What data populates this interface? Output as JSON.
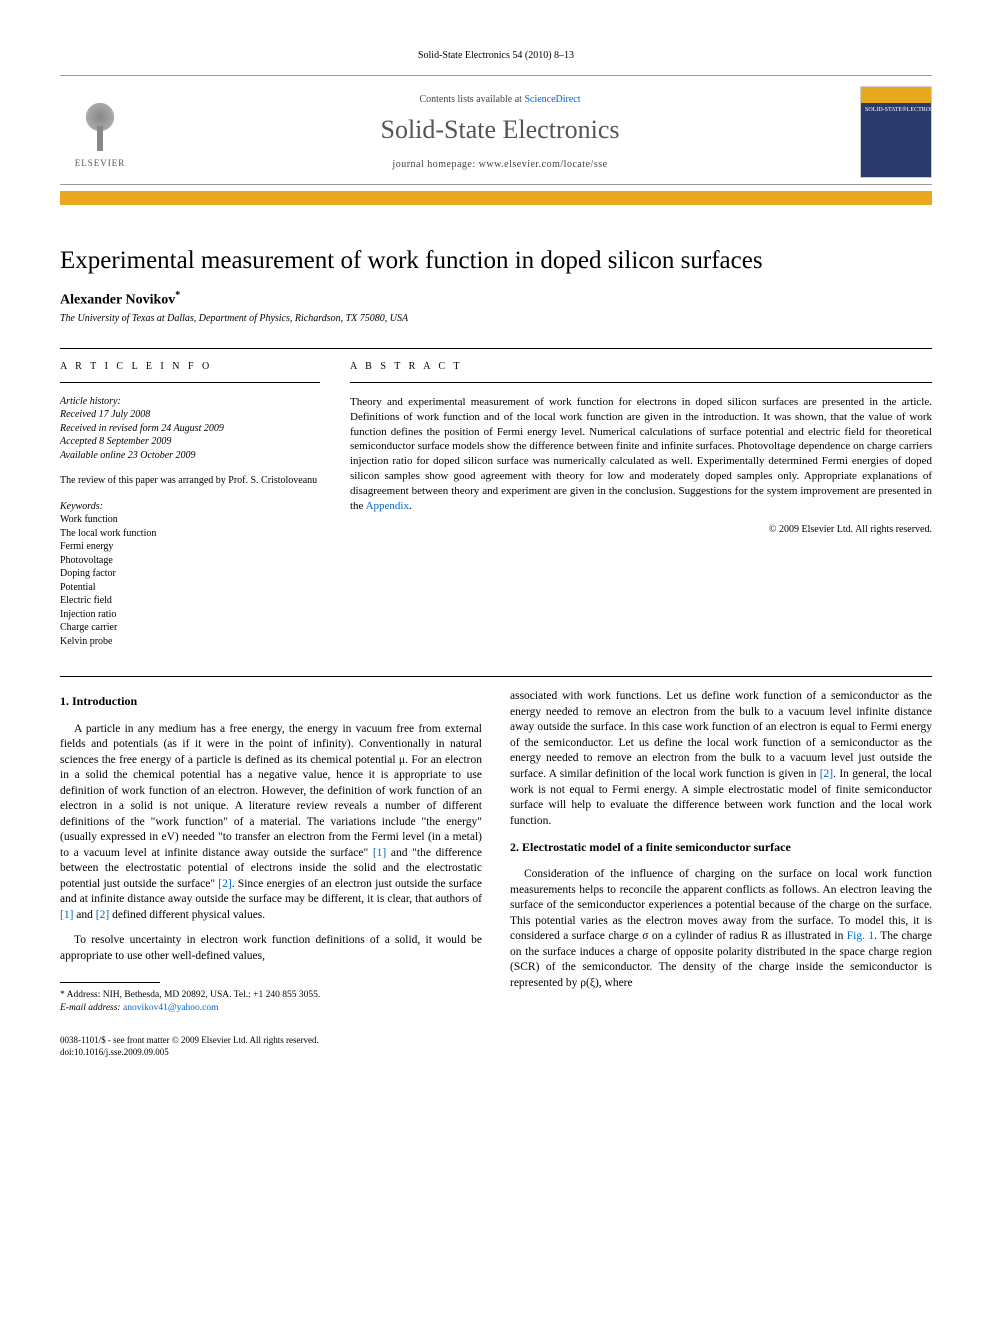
{
  "header": {
    "citation": "Solid-State Electronics 54 (2010) 8–13"
  },
  "banner": {
    "elsevier_label": "ELSEVIER",
    "contents_prefix": "Contents lists available at ",
    "contents_link": "ScienceDirect",
    "journal_name": "Solid-State Electronics",
    "homepage_prefix": "journal homepage: ",
    "homepage_url": "www.elsevier.com/locate/sse"
  },
  "colors": {
    "accent_bar": "#e8a820",
    "link": "#0066cc",
    "cover_top": "#e8a820",
    "cover_body": "#2a3a6a"
  },
  "title": "Experimental measurement of work function in doped silicon surfaces",
  "author": {
    "name": "Alexander Novikov",
    "marker": "*",
    "affiliation": "The University of Texas at Dallas, Department of Physics, Richardson, TX 75080, USA"
  },
  "article_info": {
    "heading": "A R T I C L E   I N F O",
    "history_label": "Article history:",
    "history": [
      "Received 17 July 2008",
      "Received in revised form 24 August 2009",
      "Accepted 8 September 2009",
      "Available online 23 October 2009"
    ],
    "review_note": "The review of this paper was arranged by Prof. S. Cristoloveanu",
    "keywords_label": "Keywords:",
    "keywords": [
      "Work function",
      "The local work function",
      "Fermi energy",
      "Photovoltage",
      "Doping factor",
      "Potential",
      "Electric field",
      "Injection ratio",
      "Charge carrier",
      "Kelvin probe"
    ]
  },
  "abstract": {
    "heading": "A B S T R A C T",
    "text": "Theory and experimental measurement of work function for electrons in doped silicon surfaces are presented in the article. Definitions of work function and of the local work function are given in the introduction. It was shown, that the value of work function defines the position of Fermi energy level. Numerical calculations of surface potential and electric field for theoretical semiconductor surface models show the difference between finite and infinite surfaces. Photovoltage dependence on charge carriers injection ratio for doped silicon surface was numerically calculated as well. Experimentally determined Fermi energies of doped silicon samples show good agreement with theory for low and moderately doped samples only. Appropriate explanations of disagreement between theory and experiment are given in the conclusion. Suggestions for the system improvement are presented in the ",
    "appendix_link": "Appendix",
    "copyright": "© 2009 Elsevier Ltd. All rights reserved."
  },
  "body": {
    "left": {
      "heading": "1. Introduction",
      "p1_a": "A particle in any medium has a free energy, the energy in vacuum free from external fields and potentials (as if it were in the point of infinity). Conventionally in natural sciences the free energy of a particle is defined as its chemical potential μ. For an electron in a solid the chemical potential has a negative value, hence it is appropriate to use definition of work function of an electron. However, the definition of work function of an electron in a solid is not unique. A literature review reveals a number of different definitions of the \"work function\" of a material. The variations include \"the energy\" (usually expressed in eV) needed \"to transfer an electron from the Fermi level (in a metal) to a vacuum level at infinite distance away outside the surface\" ",
      "ref1": "[1]",
      "p1_b": " and \"the difference between the electrostatic potential of electrons inside the solid and the electrostatic potential just outside the surface\" ",
      "ref2a": "[2]",
      "p1_c": ". Since energies of an electron just outside the surface and at infinite distance away outside the surface may be different, it is clear, that authors of ",
      "ref1b": "[1]",
      "p1_d": " and ",
      "ref2b": "[2]",
      "p1_e": " defined different physical values.",
      "p2": "To resolve uncertainty in electron work function definitions of a solid, it would be appropriate to use other well-defined values,"
    },
    "right": {
      "p1_a": "associated with work functions. Let us define work function of a semiconductor as the energy needed to remove an electron from the bulk to a vacuum level infinite distance away outside the surface. In this case work function of an electron is equal to Fermi energy of the semiconductor. Let us define the local work function of a semiconductor as the energy needed to remove an electron from the bulk to a vacuum level just outside the surface. A similar definition of the local work function is given in ",
      "ref2": "[2]",
      "p1_b": ". In general, the local work is not equal to Fermi energy. A simple electrostatic model of finite semiconductor surface will help to evaluate the difference between work function and the local work function.",
      "heading": "2. Electrostatic model of a finite semiconductor surface",
      "p2_a": "Consideration of the influence of charging on the surface on local work function measurements helps to reconcile the apparent conflicts as follows. An electron leaving the surface of the semiconductor experiences a potential because of the charge on the surface. This potential varies as the electron moves away from the surface. To model this, it is considered a surface charge σ on a cylinder of radius R as illustrated in ",
      "fig1": "Fig. 1",
      "p2_b": ". The charge on the surface induces a charge of opposite polarity distributed in the space charge region (SCR) of the semiconductor. The density of the charge inside the semiconductor is represented by ρ(ξ), where"
    }
  },
  "footnote": {
    "marker": "*",
    "address": " Address: NIH, Bethesda, MD 20892, USA. Tel.: +1 240 855 3055.",
    "email_label": "E-mail address:",
    "email": " anovikov41@yahoo.com"
  },
  "footer": {
    "issn": "0038-1101/$ - see front matter © 2009 Elsevier Ltd. All rights reserved.",
    "doi": "doi:10.1016/j.sse.2009.09.005"
  }
}
